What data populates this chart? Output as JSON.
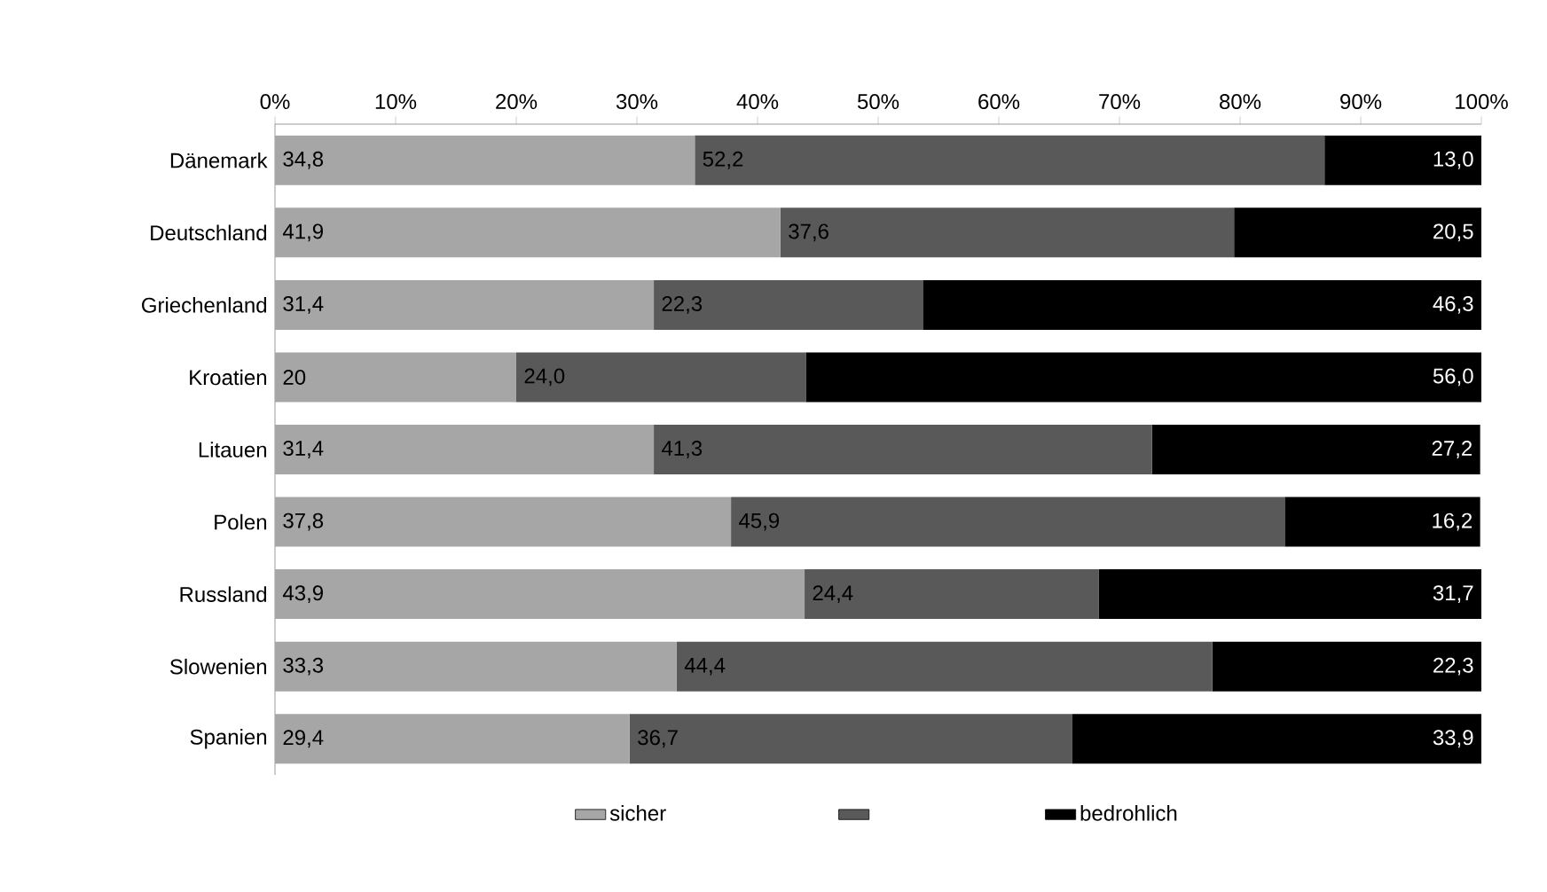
{
  "chart_data": {
    "type": "bar",
    "orientation": "horizontal",
    "stacked": true,
    "legend": "bottom",
    "categories": [
      "Dänemark",
      "Deutschland",
      "Griechenland",
      "Kroatien",
      "Litauen",
      "Polen",
      "Russland",
      "Slowenien",
      "Spanien"
    ],
    "xlim": [
      0,
      100
    ],
    "xticks": [
      {
        "value": 0,
        "label": "0%"
      },
      {
        "value": 10,
        "label": "10%"
      },
      {
        "value": 20,
        "label": "20%"
      },
      {
        "value": 30,
        "label": "30%"
      },
      {
        "value": 40,
        "label": "40%"
      },
      {
        "value": 50,
        "label": "50%"
      },
      {
        "value": 60,
        "label": "60%"
      },
      {
        "value": 70,
        "label": "70%"
      },
      {
        "value": 80,
        "label": "80%"
      },
      {
        "value": 90,
        "label": "90%"
      },
      {
        "value": 100,
        "label": "100%"
      }
    ],
    "series": [
      {
        "name": "sicher",
        "color": "#a6a6a6",
        "values": [
          34.8,
          41.9,
          31.4,
          20,
          31.4,
          37.8,
          43.9,
          33.3,
          29.4
        ],
        "value_labels": [
          "34,8",
          "41,9",
          "31,4",
          "20",
          "31,4",
          "37,8",
          "43,9",
          "33,3",
          "29,4"
        ]
      },
      {
        "color": "#595959",
        "values": [
          52.2,
          37.6,
          22.3,
          24.0,
          41.3,
          45.9,
          24.4,
          44.4,
          36.7
        ],
        "value_labels": [
          "52,2",
          "37,6",
          "22,3",
          "24,0",
          "41,3",
          "45,9",
          "24,4",
          "44,4",
          "36,7"
        ]
      },
      {
        "name": "bedrohlich",
        "color": "#000000",
        "values": [
          13.0,
          20.5,
          46.3,
          56.0,
          27.2,
          16.2,
          31.7,
          22.3,
          33.9
        ],
        "value_labels": [
          "13,0",
          "20,5",
          "46,3",
          "56,0",
          "27,2",
          "16,2",
          "31,7",
          "22,3",
          "33,9"
        ]
      }
    ]
  }
}
